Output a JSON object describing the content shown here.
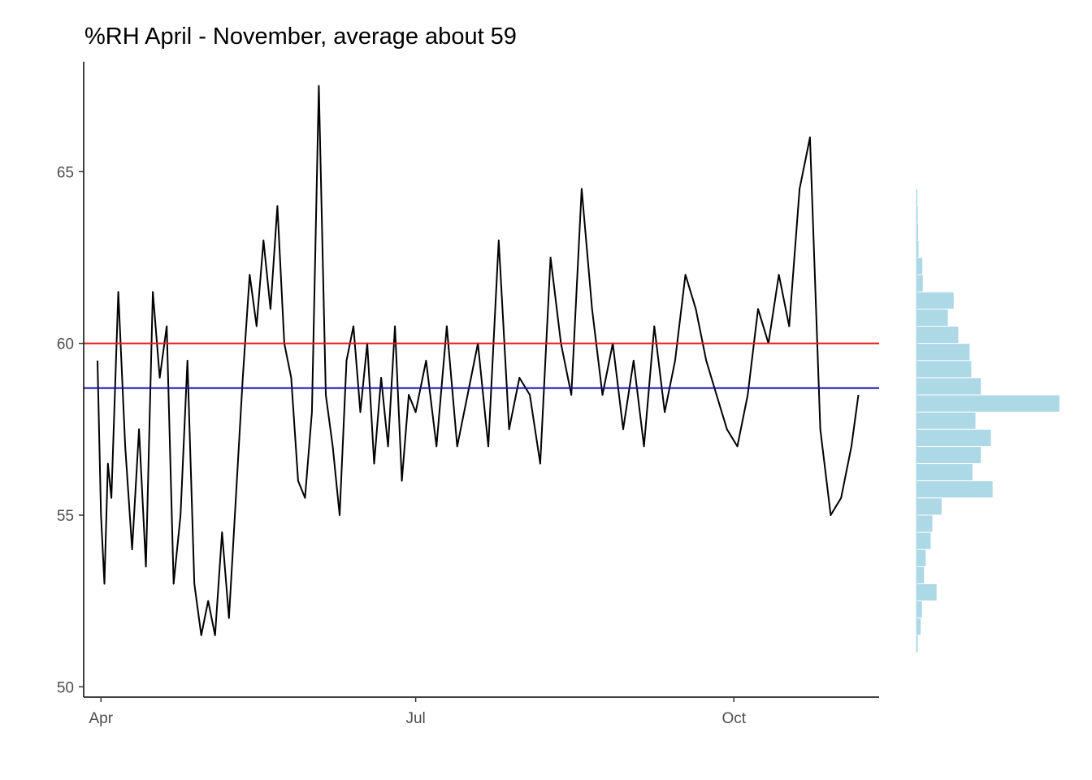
{
  "chart_data": {
    "type": "line",
    "title": "%RH April - November, average about 59",
    "xlabel": "",
    "ylabel": "",
    "x_ticks": [
      "Apr",
      "Jul",
      "Oct"
    ],
    "y_ticks": [
      50,
      55,
      60,
      65
    ],
    "ylim": [
      49.7,
      68.2
    ],
    "xlim": [
      "2021-03-27",
      "2021-11-12"
    ],
    "grid": false,
    "line_color": "#000000",
    "reference_lines": [
      {
        "y": 60.0,
        "color": "#e41a1c"
      },
      {
        "y": 58.7,
        "color": "#1010b0"
      }
    ],
    "series": [
      {
        "x": [
          "2021-03-31",
          "2021-04-01",
          "2021-04-02",
          "2021-04-03",
          "2021-04-04",
          "2021-04-06",
          "2021-04-08",
          "2021-04-10",
          "2021-04-12",
          "2021-04-14",
          "2021-04-16",
          "2021-04-18",
          "2021-04-20",
          "2021-04-22",
          "2021-04-24",
          "2021-04-26",
          "2021-04-28",
          "2021-04-30",
          "2021-05-02",
          "2021-05-04",
          "2021-05-06",
          "2021-05-08",
          "2021-05-10",
          "2021-05-12",
          "2021-05-14",
          "2021-05-16",
          "2021-05-18",
          "2021-05-20",
          "2021-05-22",
          "2021-05-24",
          "2021-05-26",
          "2021-05-28",
          "2021-05-30",
          "2021-06-01",
          "2021-06-03",
          "2021-06-05",
          "2021-06-07",
          "2021-06-09",
          "2021-06-11",
          "2021-06-13",
          "2021-06-15",
          "2021-06-17",
          "2021-06-19",
          "2021-06-21",
          "2021-06-23",
          "2021-06-25",
          "2021-06-27",
          "2021-06-29",
          "2021-07-01",
          "2021-07-04",
          "2021-07-07",
          "2021-07-10",
          "2021-07-13",
          "2021-07-16",
          "2021-07-19",
          "2021-07-22",
          "2021-07-25",
          "2021-07-28",
          "2021-07-31",
          "2021-08-03",
          "2021-08-06",
          "2021-08-09",
          "2021-08-12",
          "2021-08-15",
          "2021-08-18",
          "2021-08-21",
          "2021-08-24",
          "2021-08-27",
          "2021-08-30",
          "2021-09-02",
          "2021-09-05",
          "2021-09-08",
          "2021-09-11",
          "2021-09-14",
          "2021-09-17",
          "2021-09-20",
          "2021-09-23",
          "2021-09-26",
          "2021-09-29",
          "2021-10-02",
          "2021-10-05",
          "2021-10-08",
          "2021-10-11",
          "2021-10-14",
          "2021-10-17",
          "2021-10-20",
          "2021-10-23",
          "2021-10-26",
          "2021-10-29",
          "2021-11-01",
          "2021-11-04",
          "2021-11-06"
        ],
        "values": [
          59.5,
          55.0,
          53.0,
          56.5,
          55.5,
          61.5,
          57.0,
          54.0,
          57.5,
          53.5,
          61.5,
          59.0,
          60.5,
          53.0,
          55.0,
          59.5,
          53.0,
          51.5,
          52.5,
          51.5,
          54.5,
          52.0,
          55.5,
          59.0,
          62.0,
          60.5,
          63.0,
          61.0,
          64.0,
          60.0,
          59.0,
          56.0,
          55.5,
          58.0,
          67.5,
          58.5,
          57.0,
          55.0,
          59.5,
          60.5,
          58.0,
          60.0,
          56.5,
          59.0,
          57.0,
          60.5,
          56.0,
          58.5,
          58.0,
          59.5,
          57.0,
          60.5,
          57.0,
          58.5,
          60.0,
          57.0,
          63.0,
          57.5,
          59.0,
          58.5,
          56.5,
          62.5,
          60.0,
          58.5,
          64.5,
          61.0,
          58.5,
          60.0,
          57.5,
          59.5,
          57.0,
          60.5,
          58.0,
          59.5,
          62.0,
          61.0,
          59.5,
          58.5,
          57.5,
          57.0,
          58.5,
          61.0,
          60.0,
          62.0,
          60.5,
          64.5,
          66.0,
          57.5,
          55.0,
          55.5,
          57.0,
          58.5
        ]
      }
    ],
    "histogram": {
      "orientation": "horizontal",
      "color": "#add8e6",
      "bins": [
        {
          "y": 51.25,
          "count": 3
        },
        {
          "y": 51.75,
          "count": 10
        },
        {
          "y": 52.25,
          "count": 13
        },
        {
          "y": 52.75,
          "count": 48
        },
        {
          "y": 53.25,
          "count": 18
        },
        {
          "y": 53.75,
          "count": 22
        },
        {
          "y": 54.25,
          "count": 34
        },
        {
          "y": 54.75,
          "count": 38
        },
        {
          "y": 55.25,
          "count": 60
        },
        {
          "y": 55.75,
          "count": 182
        },
        {
          "y": 56.25,
          "count": 134
        },
        {
          "y": 56.75,
          "count": 154
        },
        {
          "y": 57.25,
          "count": 178
        },
        {
          "y": 57.75,
          "count": 141
        },
        {
          "y": 58.25,
          "count": 342
        },
        {
          "y": 58.75,
          "count": 154
        },
        {
          "y": 59.25,
          "count": 131
        },
        {
          "y": 59.75,
          "count": 127
        },
        {
          "y": 60.25,
          "count": 100
        },
        {
          "y": 60.75,
          "count": 75
        },
        {
          "y": 61.25,
          "count": 89
        },
        {
          "y": 61.75,
          "count": 15
        },
        {
          "y": 62.25,
          "count": 14
        },
        {
          "y": 62.75,
          "count": 5
        },
        {
          "y": 63.25,
          "count": 4
        },
        {
          "y": 63.75,
          "count": 3
        },
        {
          "y": 64.25,
          "count": 2
        }
      ]
    }
  }
}
